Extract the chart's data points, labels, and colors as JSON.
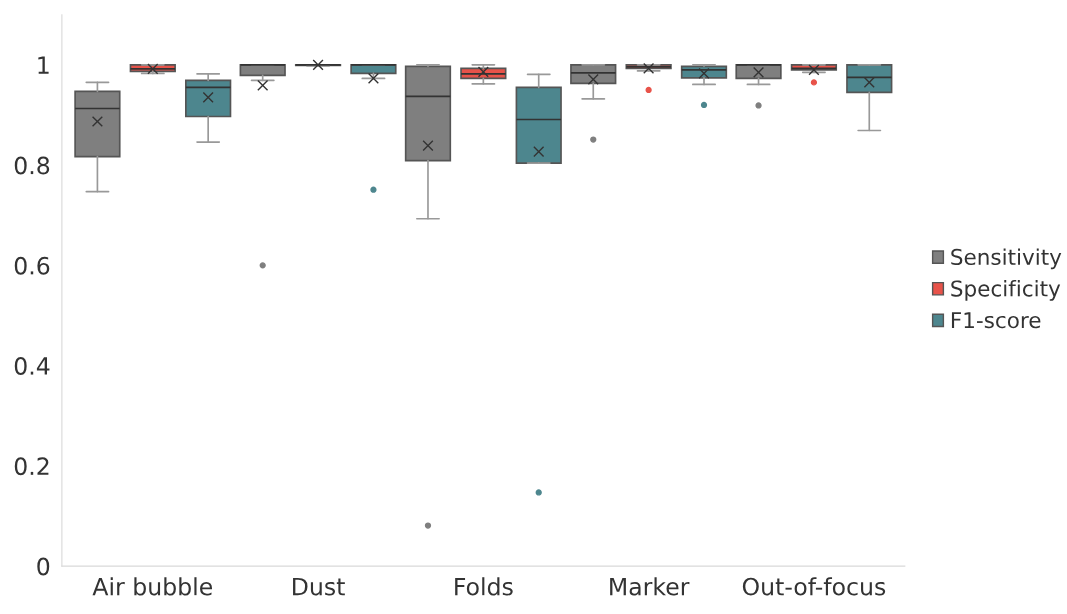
{
  "chart_data": {
    "type": "box",
    "categories": [
      "Air bubble",
      "Dust",
      "Folds",
      "Marker",
      "Out-of-focus"
    ],
    "ylim": [
      0,
      1.1
    ],
    "yticks": [
      0,
      0.2,
      0.4,
      0.6,
      0.8,
      1
    ],
    "grid": false,
    "legend": "right",
    "series": [
      {
        "name": "Sensitivity",
        "color": "#7f7f7f",
        "boxes": [
          {
            "low": 0.747,
            "q1": 0.817,
            "median": 0.913,
            "q3": 0.947,
            "high": 0.965,
            "mean": 0.887
          },
          {
            "low": 0.969,
            "q1": 0.979,
            "median": 1.0,
            "q3": 1.0,
            "high": 1.0,
            "mean": 0.959,
            "outliers": [
              0.6
            ]
          },
          {
            "low": 0.693,
            "q1": 0.809,
            "median": 0.937,
            "q3": 0.997,
            "high": 1.0,
            "mean": 0.839,
            "outliers": [
              0.081
            ]
          },
          {
            "low": 0.932,
            "q1": 0.963,
            "median": 0.984,
            "q3": 1.0,
            "high": 1.0,
            "mean": 0.971,
            "outliers": [
              0.851
            ]
          },
          {
            "low": 0.961,
            "q1": 0.973,
            "median": 1.0,
            "q3": 1.0,
            "high": 1.0,
            "mean": 0.985,
            "outliers": [
              0.919
            ]
          }
        ]
      },
      {
        "name": "Specificity",
        "color": "#e8534a",
        "boxes": [
          {
            "low": 0.983,
            "q1": 0.987,
            "median": 0.992,
            "q3": 1.0,
            "high": 1.0,
            "mean": 0.992
          },
          {
            "low": 0.998,
            "q1": 0.999,
            "median": 1.0,
            "q3": 1.0,
            "high": 1.0,
            "mean": 1.0
          },
          {
            "low": 0.962,
            "q1": 0.973,
            "median": 0.982,
            "q3": 0.993,
            "high": 1.0,
            "mean": 0.986
          },
          {
            "low": 0.988,
            "q1": 0.993,
            "median": 0.996,
            "q3": 1.0,
            "high": 1.0,
            "mean": 0.993,
            "outliers": [
              0.95
            ]
          },
          {
            "low": 0.985,
            "q1": 0.99,
            "median": 0.993,
            "q3": 1.0,
            "high": 1.0,
            "mean": 0.99,
            "outliers": [
              0.965
            ]
          }
        ]
      },
      {
        "name": "F1-score",
        "color": "#4d868e",
        "boxes": [
          {
            "low": 0.846,
            "q1": 0.897,
            "median": 0.955,
            "q3": 0.969,
            "high": 0.982,
            "mean": 0.935
          },
          {
            "low": 0.973,
            "q1": 0.983,
            "median": 1.0,
            "q3": 1.0,
            "high": 1.0,
            "mean": 0.973,
            "outliers": [
              0.751
            ]
          },
          {
            "low": 0.804,
            "q1": 0.804,
            "median": 0.891,
            "q3": 0.955,
            "high": 0.981,
            "mean": 0.827,
            "outliers": [
              0.147
            ]
          },
          {
            "low": 0.961,
            "q1": 0.974,
            "median": 0.99,
            "q3": 0.997,
            "high": 1.0,
            "mean": 0.983,
            "outliers": [
              0.92
            ]
          },
          {
            "low": 0.869,
            "q1": 0.945,
            "median": 0.975,
            "q3": 1.0,
            "high": 1.0,
            "mean": 0.965
          }
        ]
      }
    ]
  }
}
